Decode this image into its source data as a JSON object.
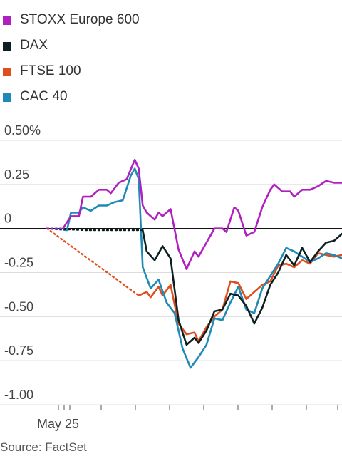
{
  "chart_data": {
    "type": "line",
    "title": "",
    "xlabel": "",
    "ylabel": "",
    "ylim": [
      -1.0,
      0.5
    ],
    "yticks": [
      {
        "value": 0.5,
        "label": "0.50%"
      },
      {
        "value": 0.25,
        "label": "0.25"
      },
      {
        "value": 0,
        "label": "0"
      },
      {
        "value": -0.25,
        "label": "-0.25"
      },
      {
        "value": -0.5,
        "label": "-0.50"
      },
      {
        "value": -0.75,
        "label": "-0.75"
      },
      {
        "value": -1.0,
        "label": "-1.00"
      }
    ],
    "x_tick_label": "May 25",
    "grid": "horizontal",
    "legend_position": "top-left",
    "series": [
      {
        "name": "STOXX Europe 600",
        "color": "#b01fc0",
        "points": [
          [
            0,
            0
          ],
          [
            4,
            0
          ],
          [
            6,
            0.07
          ],
          [
            8,
            0.07
          ],
          [
            9,
            0.18
          ],
          [
            11,
            0.18
          ],
          [
            13,
            0.22
          ],
          [
            15,
            0.22
          ],
          [
            16,
            0.2
          ],
          [
            18,
            0.26
          ],
          [
            20,
            0.28
          ],
          [
            22,
            0.39
          ],
          [
            23,
            0.34
          ],
          [
            24,
            0.13
          ],
          [
            25,
            0.09
          ],
          [
            27,
            0.05
          ],
          [
            28,
            0.09
          ],
          [
            29,
            0.07
          ],
          [
            31,
            0.11
          ],
          [
            33,
            -0.12
          ],
          [
            35,
            -0.23
          ],
          [
            37,
            -0.13
          ],
          [
            38,
            -0.16
          ],
          [
            40,
            -0.08
          ],
          [
            42,
            0
          ],
          [
            44,
            0
          ],
          [
            45,
            -0.02
          ],
          [
            47,
            0.12
          ],
          [
            48,
            0.1
          ],
          [
            50,
            -0.04
          ],
          [
            52,
            -0.02
          ],
          [
            54,
            0.12
          ],
          [
            56,
            0.22
          ],
          [
            57,
            0.25
          ],
          [
            59,
            0.21
          ],
          [
            61,
            0.21
          ],
          [
            62,
            0.18
          ],
          [
            64,
            0.22
          ],
          [
            66,
            0.22
          ],
          [
            68,
            0.24
          ],
          [
            70,
            0.27
          ],
          [
            72,
            0.26
          ],
          [
            74,
            0.26
          ]
        ]
      },
      {
        "name": "DAX",
        "color": "#0d1f22",
        "points": [
          [
            0,
            0
          ],
          [
            10,
            -0.01
          ],
          [
            24,
            -0.01
          ],
          [
            25,
            -0.13
          ],
          [
            27,
            -0.18
          ],
          [
            29,
            -0.1
          ],
          [
            31,
            -0.17
          ],
          [
            33,
            -0.52
          ],
          [
            35,
            -0.66
          ],
          [
            37,
            -0.62
          ],
          [
            38,
            -0.65
          ],
          [
            40,
            -0.58
          ],
          [
            42,
            -0.47
          ],
          [
            44,
            -0.46
          ],
          [
            46,
            -0.37
          ],
          [
            48,
            -0.38
          ],
          [
            50,
            -0.44
          ],
          [
            52,
            -0.54
          ],
          [
            54,
            -0.45
          ],
          [
            56,
            -0.32
          ],
          [
            58,
            -0.25
          ],
          [
            60,
            -0.15
          ],
          [
            62,
            -0.21
          ],
          [
            64,
            -0.11
          ],
          [
            66,
            -0.19
          ],
          [
            68,
            -0.13
          ],
          [
            70,
            -0.08
          ],
          [
            72,
            -0.07
          ],
          [
            74,
            -0.03
          ]
        ]
      },
      {
        "name": "FTSE 100",
        "color": "#dd4f1e",
        "points": [
          [
            0,
            0
          ],
          [
            23,
            -0.38
          ],
          [
            25,
            -0.36
          ],
          [
            26,
            -0.39
          ],
          [
            28,
            -0.33
          ],
          [
            29,
            -0.38
          ],
          [
            31,
            -0.32
          ],
          [
            33,
            -0.54
          ],
          [
            35,
            -0.6
          ],
          [
            37,
            -0.59
          ],
          [
            38,
            -0.64
          ],
          [
            40,
            -0.56
          ],
          [
            42,
            -0.5
          ],
          [
            44,
            -0.46
          ],
          [
            46,
            -0.3
          ],
          [
            48,
            -0.31
          ],
          [
            50,
            -0.4
          ],
          [
            52,
            -0.36
          ],
          [
            54,
            -0.32
          ],
          [
            56,
            -0.3
          ],
          [
            58,
            -0.21
          ],
          [
            60,
            -0.2
          ],
          [
            62,
            -0.22
          ],
          [
            64,
            -0.18
          ],
          [
            66,
            -0.2
          ],
          [
            68,
            -0.14
          ],
          [
            70,
            -0.15
          ],
          [
            72,
            -0.16
          ],
          [
            74,
            -0.15
          ]
        ]
      },
      {
        "name": "CAC 40",
        "color": "#1e8ab5",
        "points": [
          [
            0,
            0
          ],
          [
            5,
            -0.01
          ],
          [
            6,
            0.09
          ],
          [
            8,
            0.09
          ],
          [
            9,
            0.12
          ],
          [
            11,
            0.1
          ],
          [
            13,
            0.13
          ],
          [
            15,
            0.13
          ],
          [
            17,
            0.15
          ],
          [
            19,
            0.16
          ],
          [
            21,
            0.3
          ],
          [
            22,
            0.34
          ],
          [
            23,
            0.28
          ],
          [
            24,
            -0.22
          ],
          [
            26,
            -0.34
          ],
          [
            28,
            -0.29
          ],
          [
            30,
            -0.42
          ],
          [
            32,
            -0.48
          ],
          [
            34,
            -0.68
          ],
          [
            36,
            -0.79
          ],
          [
            38,
            -0.73
          ],
          [
            40,
            -0.66
          ],
          [
            42,
            -0.51
          ],
          [
            44,
            -0.52
          ],
          [
            46,
            -0.42
          ],
          [
            48,
            -0.33
          ],
          [
            50,
            -0.46
          ],
          [
            52,
            -0.48
          ],
          [
            54,
            -0.34
          ],
          [
            56,
            -0.27
          ],
          [
            58,
            -0.2
          ],
          [
            60,
            -0.11
          ],
          [
            62,
            -0.13
          ],
          [
            64,
            -0.16
          ],
          [
            66,
            -0.19
          ],
          [
            68,
            -0.17
          ],
          [
            70,
            -0.14
          ],
          [
            72,
            -0.15
          ],
          [
            74,
            -0.17
          ]
        ]
      }
    ]
  },
  "source": "Source: FactSet"
}
